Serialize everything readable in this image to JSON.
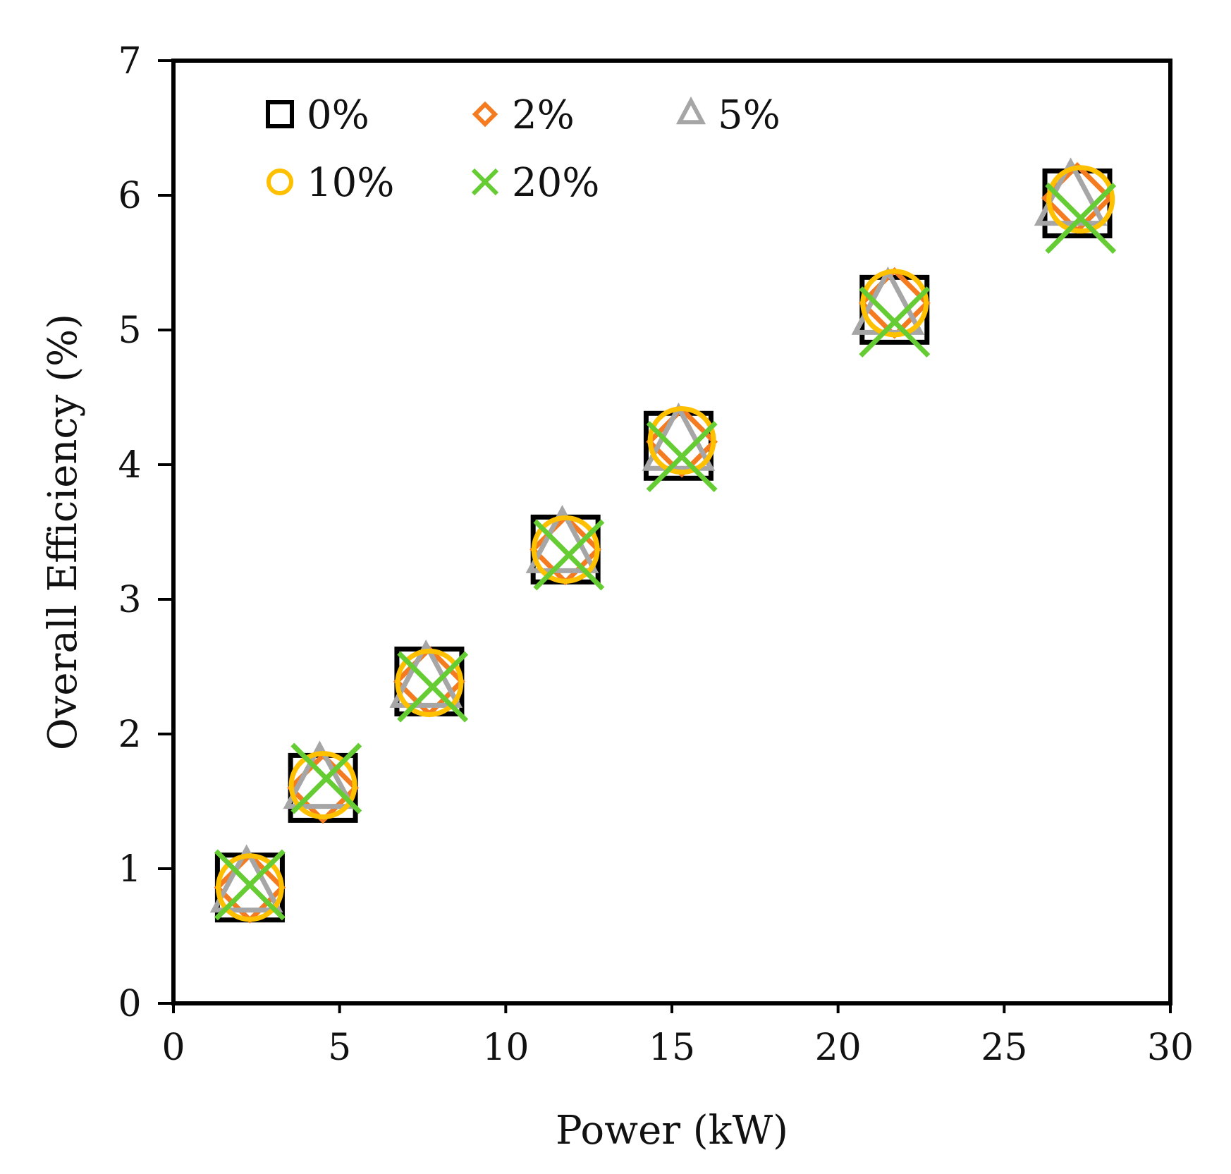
{
  "chart_data": {
    "type": "scatter",
    "title": "",
    "xlabel": "Power (kW)",
    "ylabel": "Overall Efficiency (%)",
    "xlim": [
      0,
      30
    ],
    "ylim": [
      0,
      7
    ],
    "xticks": [
      0,
      5,
      10,
      15,
      20,
      25,
      30
    ],
    "yticks": [
      0,
      1,
      2,
      3,
      4,
      5,
      6,
      7
    ],
    "grid": false,
    "legend_position": "top-left",
    "series": [
      {
        "name": "0%",
        "marker": "square",
        "color": "#000000",
        "x": [
          2.3,
          4.5,
          7.7,
          11.8,
          15.2,
          21.7,
          27.2
        ],
        "y": [
          0.86,
          1.6,
          2.39,
          3.37,
          4.14,
          5.15,
          5.94
        ]
      },
      {
        "name": "2%",
        "marker": "diamond",
        "color": "#f47b20",
        "x": [
          2.3,
          4.5,
          7.7,
          11.8,
          15.3,
          21.7,
          27.2
        ],
        "y": [
          0.86,
          1.6,
          2.39,
          3.37,
          4.17,
          5.2,
          5.98
        ]
      },
      {
        "name": "5%",
        "marker": "triangle",
        "color": "#a6a6a6",
        "x": [
          2.2,
          4.4,
          7.6,
          11.7,
          15.2,
          21.5,
          27.0
        ],
        "y": [
          0.86,
          1.63,
          2.38,
          3.38,
          4.14,
          5.15,
          5.96
        ]
      },
      {
        "name": "10%",
        "marker": "circle",
        "color": "#ffc000",
        "x": [
          2.3,
          4.5,
          7.7,
          11.8,
          15.3,
          21.7,
          27.3
        ],
        "y": [
          0.86,
          1.62,
          2.38,
          3.37,
          4.18,
          5.2,
          5.97
        ]
      },
      {
        "name": "20%",
        "marker": "x",
        "color": "#66cc33",
        "x": [
          2.3,
          4.6,
          7.8,
          11.9,
          15.3,
          21.7,
          27.3
        ],
        "y": [
          0.88,
          1.67,
          2.35,
          3.33,
          4.06,
          5.06,
          5.83
        ]
      }
    ]
  }
}
